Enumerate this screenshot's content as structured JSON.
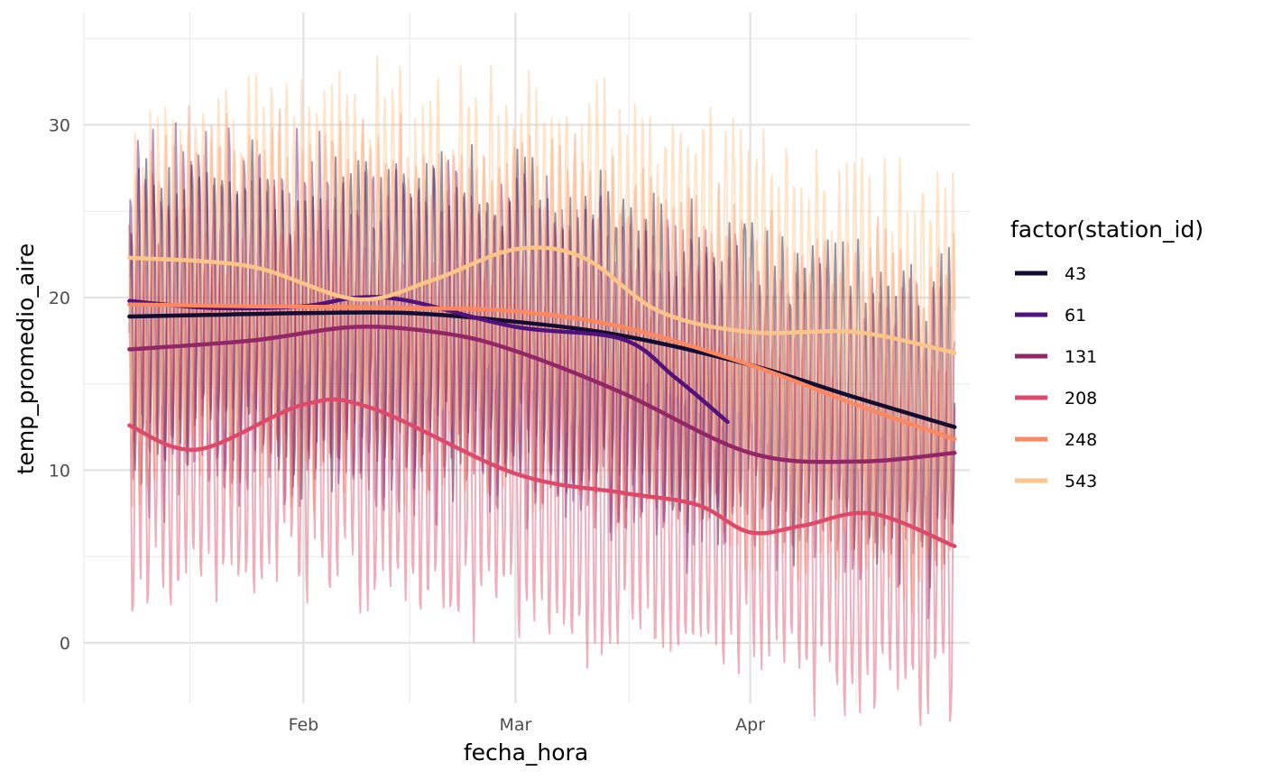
{
  "chart_data": {
    "type": "line",
    "title": "",
    "xlabel": "fecha_hora",
    "ylabel": "temp_promedio_aire",
    "x_range": [
      "2021-01-03",
      "2021-04-30"
    ],
    "ylim": [
      -3.5,
      36.5
    ],
    "x_ticks": [
      {
        "date": "2021-02-01",
        "label": "Feb"
      },
      {
        "date": "2021-03-01",
        "label": "Mar"
      },
      {
        "date": "2021-04-01",
        "label": "Apr"
      }
    ],
    "x_minor_ticks": [
      "2021-01-03",
      "2021-01-17",
      "2021-02-15",
      "2021-03-16",
      "2021-04-15"
    ],
    "y_ticks": [
      0,
      10,
      20,
      30
    ],
    "y_minor_ticks": [
      5,
      15,
      25,
      35
    ],
    "grid": true,
    "legend": {
      "title": "factor(station_id)",
      "position": "right"
    },
    "series": [
      {
        "name": "43",
        "color": "#120d31",
        "smooth": [
          [
            "2021-01-09",
            18.9
          ],
          [
            "2021-01-20",
            19.0
          ],
          [
            "2021-02-01",
            19.1
          ],
          [
            "2021-02-15",
            19.1
          ],
          [
            "2021-03-01",
            18.6
          ],
          [
            "2021-03-15",
            17.8
          ],
          [
            "2021-04-01",
            16.1
          ],
          [
            "2021-04-15",
            14.2
          ],
          [
            "2021-04-28",
            12.5
          ]
        ],
        "raw": {
          "start": "2021-01-09",
          "end": "2021-04-28",
          "mean": 19.0,
          "amplitude": 7.5,
          "trend": [
            [
              "2021-01-09",
              19.0
            ],
            [
              "2021-03-01",
              18.6
            ],
            [
              "2021-04-28",
              12.5
            ]
          ]
        }
      },
      {
        "name": "61",
        "color": "#51127c",
        "smooth": [
          [
            "2021-01-09",
            19.8
          ],
          [
            "2021-01-20",
            19.4
          ],
          [
            "2021-02-01",
            19.5
          ],
          [
            "2021-02-08",
            20.0
          ],
          [
            "2021-02-15",
            19.8
          ],
          [
            "2021-03-01",
            18.3
          ],
          [
            "2021-03-15",
            17.6
          ],
          [
            "2021-03-22",
            15.4
          ],
          [
            "2021-03-29",
            12.8
          ]
        ],
        "raw": {
          "start": "2021-01-09",
          "end": "2021-03-29",
          "mean": 19.0,
          "amplitude": 8.0,
          "trend": [
            [
              "2021-01-09",
              19.8
            ],
            [
              "2021-03-01",
              18.3
            ],
            [
              "2021-03-29",
              13.5
            ]
          ]
        }
      },
      {
        "name": "131",
        "color": "#932667",
        "smooth": [
          [
            "2021-01-09",
            17.0
          ],
          [
            "2021-01-25",
            17.5
          ],
          [
            "2021-02-08",
            18.3
          ],
          [
            "2021-02-20",
            17.9
          ],
          [
            "2021-03-01",
            16.9
          ],
          [
            "2021-03-15",
            14.5
          ],
          [
            "2021-04-01",
            11.0
          ],
          [
            "2021-04-15",
            10.5
          ],
          [
            "2021-04-28",
            11.0
          ]
        ],
        "raw": {
          "start": "2021-01-09",
          "end": "2021-04-28",
          "mean": 16.0,
          "amplitude": 7.5,
          "trend": [
            [
              "2021-01-09",
              17.0
            ],
            [
              "2021-03-01",
              16.9
            ],
            [
              "2021-04-28",
              11.0
            ]
          ]
        }
      },
      {
        "name": "208",
        "color": "#dd4a69",
        "smooth": [
          [
            "2021-01-09",
            12.6
          ],
          [
            "2021-01-18",
            11.2
          ],
          [
            "2021-02-01",
            13.8
          ],
          [
            "2021-02-10",
            13.6
          ],
          [
            "2021-03-01",
            9.8
          ],
          [
            "2021-03-15",
            8.7
          ],
          [
            "2021-03-25",
            8.0
          ],
          [
            "2021-04-01",
            6.4
          ],
          [
            "2021-04-08",
            6.8
          ],
          [
            "2021-04-17",
            7.5
          ],
          [
            "2021-04-28",
            5.6
          ]
        ],
        "raw": {
          "start": "2021-01-09",
          "end": "2021-04-28",
          "mean": 12.0,
          "amplitude": 9.0,
          "trend": [
            [
              "2021-01-09",
              12.6
            ],
            [
              "2021-02-01",
              13.8
            ],
            [
              "2021-04-28",
              5.6
            ]
          ]
        }
      },
      {
        "name": "248",
        "color": "#fb8861",
        "smooth": [
          [
            "2021-01-09",
            19.6
          ],
          [
            "2021-01-25",
            19.5
          ],
          [
            "2021-02-15",
            19.4
          ],
          [
            "2021-03-01",
            19.2
          ],
          [
            "2021-03-15",
            18.3
          ],
          [
            "2021-04-01",
            16.1
          ],
          [
            "2021-04-15",
            13.8
          ],
          [
            "2021-04-28",
            11.8
          ]
        ],
        "raw": {
          "start": "2021-01-09",
          "end": "2021-04-28",
          "mean": 20.0,
          "amplitude": 9.0,
          "trend": [
            [
              "2021-01-09",
              19.6
            ],
            [
              "2021-03-01",
              19.2
            ],
            [
              "2021-04-28",
              11.8
            ]
          ]
        }
      },
      {
        "name": "543",
        "color": "#fec488",
        "smooth": [
          [
            "2021-01-09",
            22.3
          ],
          [
            "2021-01-25",
            21.8
          ],
          [
            "2021-02-08",
            19.9
          ],
          [
            "2021-02-18",
            21.0
          ],
          [
            "2021-03-01",
            22.8
          ],
          [
            "2021-03-10",
            22.3
          ],
          [
            "2021-03-20",
            19.2
          ],
          [
            "2021-04-01",
            18.0
          ],
          [
            "2021-04-15",
            18.0
          ],
          [
            "2021-04-28",
            16.8
          ]
        ],
        "raw": {
          "start": "2021-01-09",
          "end": "2021-04-28",
          "mean": 21.0,
          "amplitude": 8.5,
          "trend": [
            [
              "2021-01-09",
              22.3
            ],
            [
              "2021-03-01",
              22.8
            ],
            [
              "2021-04-28",
              16.8
            ]
          ]
        }
      }
    ]
  }
}
